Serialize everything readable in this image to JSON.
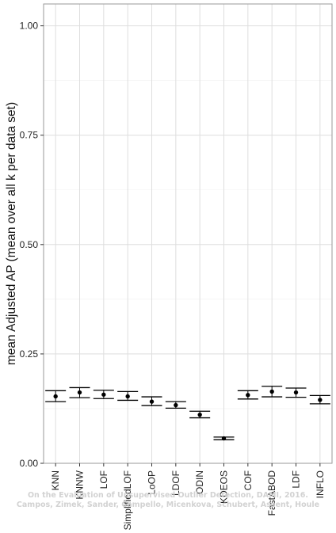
{
  "chart_data": {
    "type": "scatter",
    "subtype": "point-with-errorbars",
    "ylabel": "mean Adjusted AP (mean over all k per data set)",
    "xlabel": "",
    "ylim": [
      0,
      1.05
    ],
    "yticks": [
      0.0,
      0.25,
      0.5,
      0.75,
      1.0
    ],
    "ytick_labels": [
      "0.00",
      "0.25",
      "0.50",
      "0.75",
      "1.00"
    ],
    "grid": true,
    "categories": [
      "KNN",
      "KNNW",
      "LOF",
      "SimplifiedLOF",
      "LoOP",
      "LDOF",
      "ODIN",
      "KDEOS",
      "COF",
      "FastABOD",
      "LDF",
      "INFLO"
    ],
    "series": [
      {
        "values": [
          0.153,
          0.162,
          0.157,
          0.153,
          0.141,
          0.133,
          0.111,
          0.057,
          0.156,
          0.164,
          0.162,
          0.145
        ],
        "lower": [
          0.141,
          0.15,
          0.148,
          0.144,
          0.132,
          0.126,
          0.104,
          0.054,
          0.147,
          0.152,
          0.151,
          0.136
        ],
        "upper": [
          0.166,
          0.173,
          0.167,
          0.164,
          0.152,
          0.141,
          0.119,
          0.06,
          0.166,
          0.176,
          0.172,
          0.155
        ]
      }
    ],
    "point_color": "#000000"
  },
  "watermark": {
    "line1": "On the Evaluation of Unsupervised Outlier Detection, DAMI, 2016.",
    "line2": "Campos, Zimek, Sander, Campello, Micenkova, Schubert, Assent, Houle"
  }
}
